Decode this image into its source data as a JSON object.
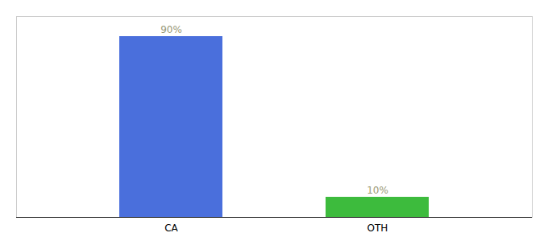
{
  "chart_data": {
    "type": "bar",
    "categories": [
      "CA",
      "OTH"
    ],
    "values": [
      90,
      10
    ],
    "value_labels": [
      "90%",
      "10%"
    ],
    "colors": [
      "#4a6fdc",
      "#3dbb3d"
    ],
    "ylim": [
      0,
      100
    ],
    "data_labels": true,
    "tick_labels": "x",
    "grid": false
  }
}
